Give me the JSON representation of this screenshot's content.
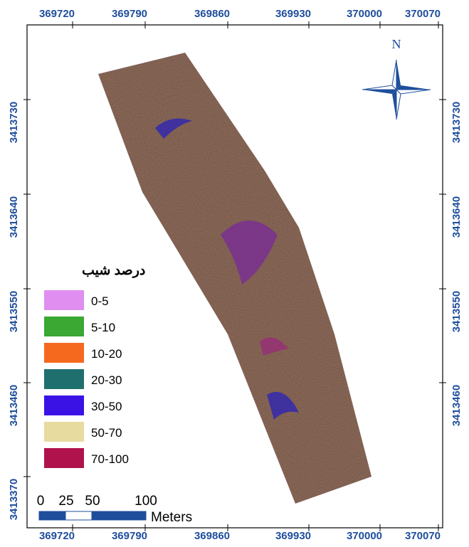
{
  "map": {
    "north_label": "N",
    "top_labels": [
      "369720",
      "369790",
      "369860",
      "369930",
      "370000",
      "370070"
    ],
    "bottom_labels": [
      "369720",
      "369790",
      "369860",
      "369930",
      "370000",
      "370070"
    ],
    "left_labels": [
      "3413730",
      "3413640",
      "3413550",
      "3413460",
      "3413370"
    ],
    "right_labels": [
      "3413730",
      "3413640",
      "3413550",
      "3413460"
    ],
    "legend": {
      "title": "درصد شیب",
      "items": [
        {
          "label": "0-5",
          "color": "#e08ef0"
        },
        {
          "label": "5-10",
          "color": "#3aa832"
        },
        {
          "label": "10-20",
          "color": "#f5691e"
        },
        {
          "label": "20-30",
          "color": "#1f6f6f"
        },
        {
          "label": "30-50",
          "color": "#3a12e6"
        },
        {
          "label": "50-70",
          "color": "#e8dba0"
        },
        {
          "label": "70-100",
          "color": "#b0134c"
        }
      ]
    },
    "scale_bar": {
      "labels": [
        "0",
        "25",
        "50",
        "100"
      ],
      "unit": "Meters"
    }
  }
}
